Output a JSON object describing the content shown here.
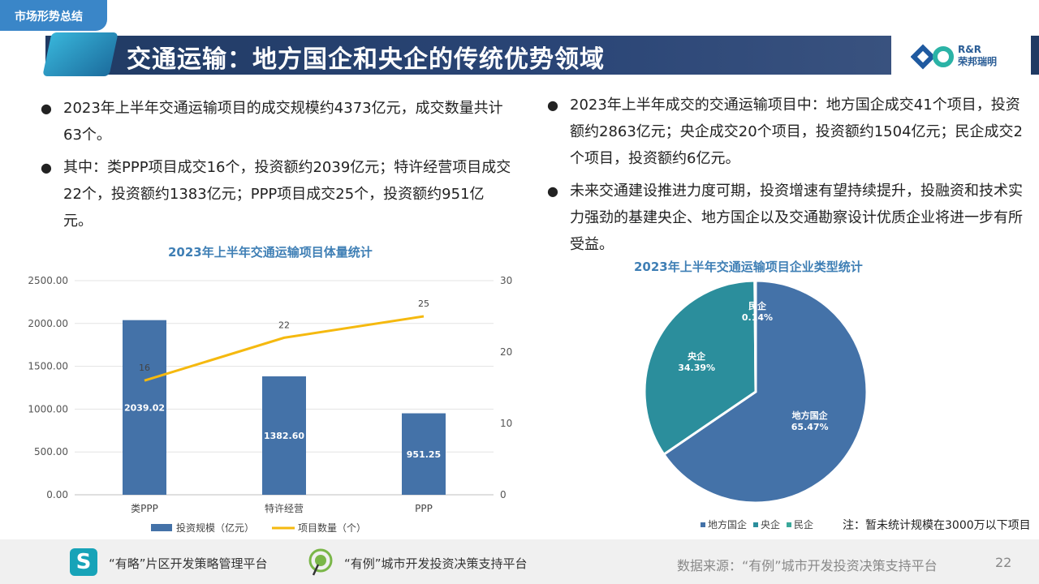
{
  "header": {
    "section_tag": "市场形势总结",
    "title": "交通运输：地方国企和央企的传统优势领域",
    "logo_top": "R&R",
    "logo_bottom": "荣邦瑞明"
  },
  "left_bullets": [
    "2023年上半年交通运输项目的成交规模约4373亿元，成交数量共计63个。",
    "其中：类PPP项目成交16个，投资额约2039亿元；特许经营项目成交22个，投资额约1383亿元；PPP项目成交25个，投资额约951亿元。"
  ],
  "right_bullets": [
    "2023年上半年成交的交通运输项目中：地方国企成交41个项目，投资额约2863亿元；央企成交20个项目，投资额约1504亿元；民企成交2个项目，投资额约6亿元。",
    "未来交通建设推进力度可期，投资增速有望持续提升，投融资和技术实力强劲的基建央企、地方国企以及交通勘察设计优质企业将进一步有所受益。"
  ],
  "chart_data": [
    {
      "type": "bar",
      "title": "2023年上半年交通运输项目体量统计",
      "categories": [
        "类PPP",
        "特许经营",
        "PPP"
      ],
      "series": [
        {
          "name": "投资规模（亿元）",
          "kind": "bar",
          "axis": "left",
          "color": "#4472a8",
          "values": [
            2039.02,
            1382.6,
            951.25
          ],
          "labels": [
            "2039.02",
            "1382.60",
            "951.25"
          ]
        },
        {
          "name": "项目数量（个）",
          "kind": "line",
          "axis": "right",
          "color": "#f5b90f",
          "values": [
            16,
            22,
            25
          ],
          "labels": [
            "16",
            "22",
            "25"
          ]
        }
      ],
      "y_left": {
        "min": 0,
        "max": 2500,
        "ticks": [
          "0.00",
          "500.00",
          "1000.00",
          "1500.00",
          "2000.00",
          "2500.00"
        ]
      },
      "y_right": {
        "min": 0,
        "max": 30,
        "ticks": [
          "0",
          "10",
          "20",
          "30"
        ]
      },
      "grid": true,
      "legend": "bottom"
    },
    {
      "type": "pie",
      "title": "2023年上半年交通运输项目企业类型统计",
      "slices": [
        {
          "name": "地方国企",
          "value": 65.47,
          "label": "65.47%",
          "color": "#4472a8"
        },
        {
          "name": "央企",
          "value": 34.39,
          "label": "34.39%",
          "color": "#2b8e9c"
        },
        {
          "name": "民企",
          "value": 0.14,
          "label": "0.14%",
          "color": "#3aa89a"
        }
      ],
      "legend": "bottom"
    }
  ],
  "note": "注：暂未统计规模在3000万以下项目",
  "footer": {
    "platform1": "“有略”片区开发策略管理平台",
    "platform2": "“有例”城市开发投资决策支持平台",
    "source": "数据来源：“有例”城市开发投资决策支持平台",
    "page": "22"
  }
}
